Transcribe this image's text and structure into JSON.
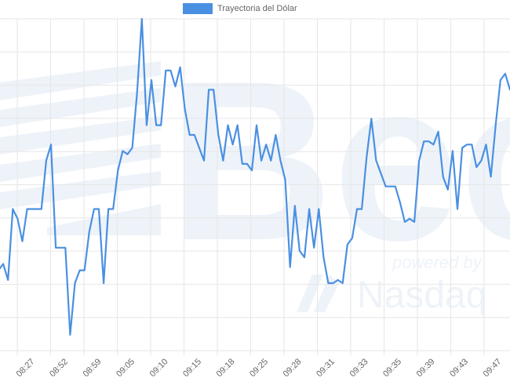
{
  "colors": {
    "line": "#4a90e2",
    "legend_fill": "#4a90e2",
    "grid": "#e6e6e6",
    "tick_text": "#666666",
    "watermark": "#eef3f9"
  },
  "watermark": {
    "brand": "Bec",
    "powered_by": "powered by",
    "partner": "Nasdaq"
  },
  "chart_data": {
    "type": "line",
    "title": "",
    "xlabel": "",
    "ylabel": "",
    "legend_position": "top-center",
    "grid": true,
    "x_tick_labels": [
      "08:27",
      "08:52",
      "08:59",
      "09:05",
      "09:10",
      "09:15",
      "09:18",
      "09:25",
      "09:28",
      "09:31",
      "09:33",
      "09:35",
      "09:39",
      "09:43",
      "09:47"
    ],
    "ylim": [
      0,
      100
    ],
    "series": [
      {
        "name": "Trayectoria del Dólar",
        "values": [
          22,
          24,
          19,
          41,
          38,
          31,
          41,
          41,
          41,
          41,
          56,
          61,
          29,
          29,
          29,
          2,
          18,
          22,
          22,
          34,
          41,
          41,
          18,
          41,
          41,
          53,
          59,
          58,
          60,
          77,
          100,
          67,
          81,
          67,
          67,
          84,
          84,
          79,
          85,
          72,
          64,
          64,
          60,
          56,
          78,
          78,
          64,
          56,
          67,
          61,
          67,
          55,
          55,
          53,
          67,
          56,
          61,
          56,
          64,
          56,
          50,
          23,
          42,
          28,
          26,
          41,
          29,
          41,
          26,
          18,
          18,
          19,
          18,
          30,
          32,
          41,
          41,
          57,
          69,
          56,
          52,
          48,
          48,
          48,
          43,
          37,
          38,
          37,
          56,
          62,
          62,
          61,
          65,
          51,
          47,
          59,
          41,
          60,
          61,
          61,
          54,
          56,
          61,
          51,
          67,
          81,
          83,
          78
        ]
      }
    ]
  }
}
